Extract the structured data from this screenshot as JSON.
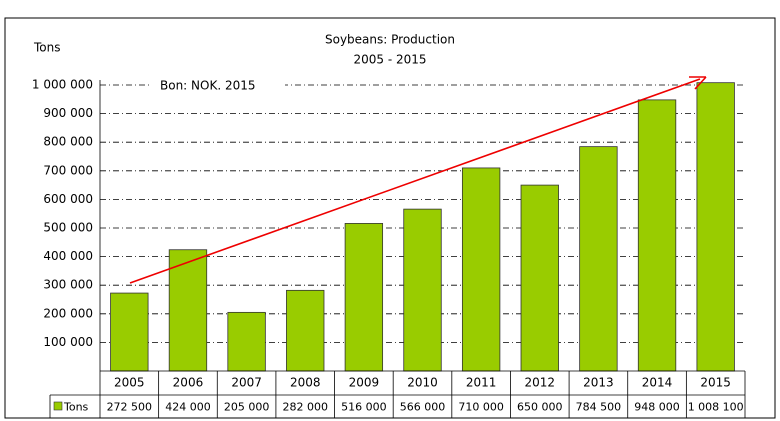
{
  "chart_data": {
    "type": "bar",
    "title": "Soybeans: Production",
    "subtitle": "2005 - 2015",
    "y_label": "Tons",
    "annotation": "Bon: NOK. 2015",
    "categories": [
      "2005",
      "2006",
      "2007",
      "2008",
      "2009",
      "2010",
      "2011",
      "2012",
      "2013",
      "2014",
      "2015"
    ],
    "series": [
      {
        "name": "Tons",
        "color": "#99cc00",
        "values": [
          272500,
          424000,
          205000,
          282000,
          516000,
          566000,
          710000,
          650000,
          784500,
          948000,
          1008100
        ],
        "value_labels": [
          "272 500",
          "424 000",
          "205 000",
          "282 000",
          "516 000",
          "566 000",
          "710 000",
          "650 000",
          "784 500",
          "948 000",
          "1 008 100"
        ]
      }
    ],
    "ylim": [
      0,
      1000000
    ],
    "yticks": [
      {
        "value": 100000,
        "label": "100 000"
      },
      {
        "value": 200000,
        "label": "200 000"
      },
      {
        "value": 300000,
        "label": "300 000"
      },
      {
        "value": 400000,
        "label": "400 000"
      },
      {
        "value": 500000,
        "label": "500 000"
      },
      {
        "value": 600000,
        "label": "600 000"
      },
      {
        "value": 700000,
        "label": "700 000"
      },
      {
        "value": 800000,
        "label": "800 000"
      },
      {
        "value": 900000,
        "label": "900 000"
      },
      {
        "value": 1000000,
        "label": "1 000 000"
      }
    ],
    "grid": true
  }
}
